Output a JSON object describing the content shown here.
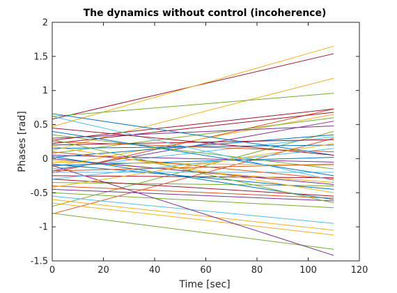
{
  "chart_data": {
    "type": "line",
    "title": "The dynamics without control (incoherence)",
    "xlabel": "Time [sec]",
    "ylabel": "Phases [rad]",
    "xlim": [
      0,
      120
    ],
    "ylim": [
      -1.5,
      2
    ],
    "xticks": [
      0,
      20,
      40,
      60,
      80,
      100,
      120
    ],
    "yticks": [
      -1.5,
      -1,
      -0.5,
      0,
      0.5,
      1,
      1.5,
      2
    ],
    "xtick_labels": [
      "0",
      "20",
      "40",
      "60",
      "80",
      "100",
      "120"
    ],
    "ytick_labels": [
      "-1.5",
      "-1",
      "-0.5",
      "0",
      "0.5",
      "1",
      "1.5",
      "2"
    ],
    "grid": false,
    "box": true,
    "color_cycle": [
      "#0072BD",
      "#D95319",
      "#EDB120",
      "#7E2F8E",
      "#77AC30",
      "#4DBEEE",
      "#A2142F"
    ],
    "series": [
      {
        "x": [
          0,
          110
        ],
        "y": [
          0.58,
          1.54
        ],
        "color": "#A2142F"
      },
      {
        "x": [
          0,
          110
        ],
        "y": [
          0.47,
          1.65
        ],
        "color": "#EDB120"
      },
      {
        "x": [
          0,
          110
        ],
        "y": [
          0.12,
          1.18
        ],
        "color": "#EDB120"
      },
      {
        "x": [
          0,
          110
        ],
        "y": [
          0.62,
          0.96
        ],
        "color": "#77AC30"
      },
      {
        "x": [
          0,
          110
        ],
        "y": [
          -0.21,
          0.73
        ],
        "color": "#D95319"
      },
      {
        "x": [
          0,
          110
        ],
        "y": [
          0.27,
          0.73
        ],
        "color": "#A2142F"
      },
      {
        "x": [
          0,
          110
        ],
        "y": [
          0.22,
          0.68
        ],
        "color": "#A2142F"
      },
      {
        "x": [
          0,
          110
        ],
        "y": [
          -0.12,
          0.65
        ],
        "color": "#EDB120"
      },
      {
        "x": [
          0,
          110
        ],
        "y": [
          0.08,
          0.6
        ],
        "color": "#77AC30"
      },
      {
        "x": [
          0,
          110
        ],
        "y": [
          -0.18,
          0.55
        ],
        "color": "#7E2F8E"
      },
      {
        "x": [
          0,
          110
        ],
        "y": [
          0.3,
          0.48
        ],
        "color": "#7E2F8E"
      },
      {
        "x": [
          0,
          110
        ],
        "y": [
          -0.7,
          0.4
        ],
        "color": "#77AC30"
      },
      {
        "x": [
          0,
          110
        ],
        "y": [
          0.02,
          0.35
        ],
        "color": "#0072BD"
      },
      {
        "x": [
          0,
          110
        ],
        "y": [
          -0.15,
          0.32
        ],
        "color": "#4DBEEE"
      },
      {
        "x": [
          0,
          110
        ],
        "y": [
          -0.81,
          0.3
        ],
        "color": "#D95319"
      },
      {
        "x": [
          0,
          110
        ],
        "y": [
          0.2,
          0.28
        ],
        "color": "#A2142F"
      },
      {
        "x": [
          0,
          110
        ],
        "y": [
          0.15,
          0.2
        ],
        "color": "#0072BD"
      },
      {
        "x": [
          0,
          110
        ],
        "y": [
          0.25,
          0.1
        ],
        "color": "#D95319"
      },
      {
        "x": [
          0,
          110
        ],
        "y": [
          0.66,
          0.05
        ],
        "color": "#0072BD"
      },
      {
        "x": [
          0,
          110
        ],
        "y": [
          -0.1,
          0.02
        ],
        "color": "#0072BD"
      },
      {
        "x": [
          0,
          110
        ],
        "y": [
          0.05,
          -0.05
        ],
        "color": "#7E2F8E"
      },
      {
        "x": [
          0,
          110
        ],
        "y": [
          -0.05,
          -0.1
        ],
        "color": "#EDB120"
      },
      {
        "x": [
          0,
          110
        ],
        "y": [
          0.35,
          -0.15
        ],
        "color": "#77AC30"
      },
      {
        "x": [
          0,
          110
        ],
        "y": [
          -0.2,
          -0.2
        ],
        "color": "#4DBEEE"
      },
      {
        "x": [
          0,
          110
        ],
        "y": [
          0.4,
          -0.25
        ],
        "color": "#0072BD"
      },
      {
        "x": [
          0,
          110
        ],
        "y": [
          -0.25,
          -0.28
        ],
        "color": "#A2142F"
      },
      {
        "x": [
          0,
          110
        ],
        "y": [
          0.1,
          -0.3
        ],
        "color": "#D95319"
      },
      {
        "x": [
          0,
          110
        ],
        "y": [
          0.62,
          -0.32
        ],
        "color": "#4DBEEE"
      },
      {
        "x": [
          0,
          110
        ],
        "y": [
          -0.02,
          -0.35
        ],
        "color": "#EDB120"
      },
      {
        "x": [
          0,
          110
        ],
        "y": [
          0.0,
          -0.38
        ],
        "color": "#7E2F8E"
      },
      {
        "x": [
          0,
          110
        ],
        "y": [
          -0.35,
          -0.4
        ],
        "color": "#77AC30"
      },
      {
        "x": [
          0,
          110
        ],
        "y": [
          -0.08,
          -0.45
        ],
        "color": "#0072BD"
      },
      {
        "x": [
          0,
          110
        ],
        "y": [
          0.18,
          -0.5
        ],
        "color": "#EDB120"
      },
      {
        "x": [
          0,
          110
        ],
        "y": [
          -0.3,
          -0.55
        ],
        "color": "#A2142F"
      },
      {
        "x": [
          0,
          110
        ],
        "y": [
          -0.4,
          -0.58
        ],
        "color": "#D95319"
      },
      {
        "x": [
          0,
          110
        ],
        "y": [
          0.03,
          -0.6
        ],
        "color": "#0072BD"
      },
      {
        "x": [
          0,
          110
        ],
        "y": [
          -0.45,
          -0.62
        ],
        "color": "#7E2F8E"
      },
      {
        "x": [
          0,
          110
        ],
        "y": [
          0.28,
          -0.65
        ],
        "color": "#77AC30"
      },
      {
        "x": [
          0,
          110
        ],
        "y": [
          -0.5,
          -0.72
        ],
        "color": "#77AC30"
      },
      {
        "x": [
          0,
          110
        ],
        "y": [
          -0.55,
          -0.95
        ],
        "color": "#4DBEEE"
      },
      {
        "x": [
          0,
          110
        ],
        "y": [
          -0.6,
          -1.05
        ],
        "color": "#EDB120"
      },
      {
        "x": [
          0,
          110
        ],
        "y": [
          -0.65,
          -1.12
        ],
        "color": "#EDB120"
      },
      {
        "x": [
          0,
          110
        ],
        "y": [
          -0.8,
          -1.33
        ],
        "color": "#77AC30"
      },
      {
        "x": [
          0,
          110
        ],
        "y": [
          -0.1,
          -1.42
        ],
        "color": "#7E2F8E"
      },
      {
        "x": [
          0,
          110
        ],
        "y": [
          -0.3,
          0.15
        ],
        "color": "#4DBEEE"
      },
      {
        "x": [
          0,
          110
        ],
        "y": [
          -0.18,
          -0.08
        ],
        "color": "#D95319"
      },
      {
        "x": [
          0,
          110
        ],
        "y": [
          0.45,
          0.05
        ],
        "color": "#A2142F"
      },
      {
        "x": [
          0,
          110
        ],
        "y": [
          -0.42,
          0.22
        ],
        "color": "#EDB120"
      }
    ]
  }
}
